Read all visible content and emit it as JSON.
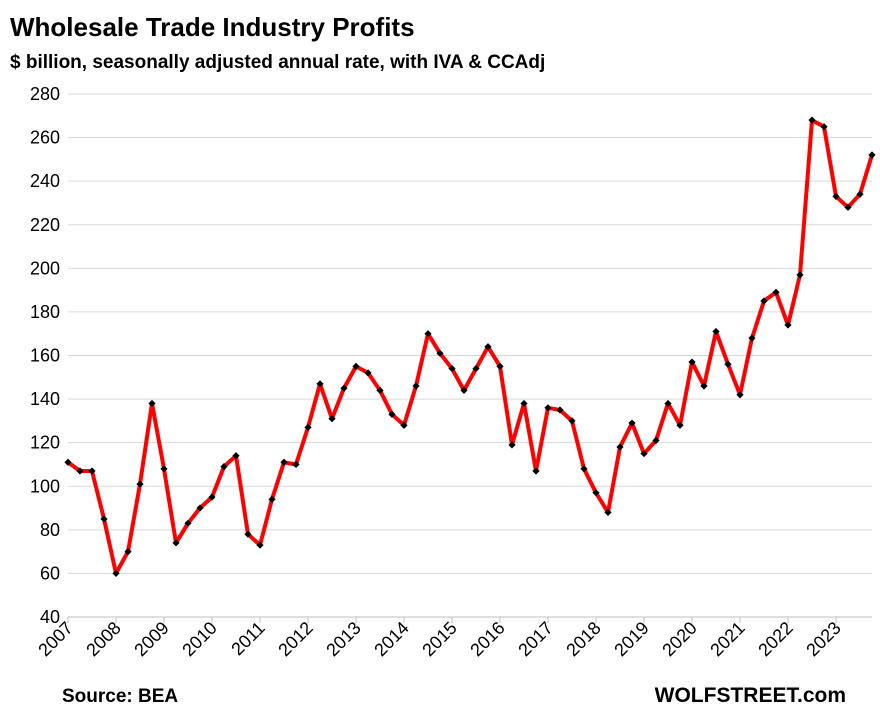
{
  "chart_data": {
    "type": "line",
    "title": "Wholesale Trade Industry Profits",
    "subtitle": "$ billion, seasonally adjusted annual rate, with IVA & CCAdj",
    "ylim": [
      40,
      280
    ],
    "yticks": [
      40,
      60,
      80,
      100,
      120,
      140,
      160,
      180,
      200,
      220,
      240,
      260,
      280
    ],
    "xlim": [
      2007,
      2023.75
    ],
    "xticks": [
      "2007",
      "2008",
      "2009",
      "2010",
      "2011",
      "2012",
      "2013",
      "2014",
      "2015",
      "2016",
      "2017",
      "2018",
      "2019",
      "2020",
      "2021",
      "2022",
      "2023"
    ],
    "grid": "horizontal",
    "series": [
      {
        "color": "#ff0000",
        "marker_color": "#000000",
        "values": [
          111,
          107,
          107,
          85,
          60,
          70,
          101,
          138,
          108,
          74,
          83,
          90,
          95,
          109,
          114,
          78,
          73,
          94,
          111,
          110,
          127,
          147,
          131,
          145,
          155,
          152,
          144,
          133,
          128,
          146,
          170,
          161,
          154,
          144,
          154,
          164,
          155,
          119,
          138,
          107,
          136,
          135,
          130,
          108,
          97,
          88,
          118,
          129,
          115,
          121,
          138,
          128,
          157,
          146,
          171,
          156,
          142,
          168,
          185,
          189,
          174,
          197,
          268,
          265,
          233,
          228,
          234,
          252
        ]
      }
    ]
  },
  "footer": {
    "source": "Source: BEA",
    "brand": "WOLFSTREET.com"
  }
}
